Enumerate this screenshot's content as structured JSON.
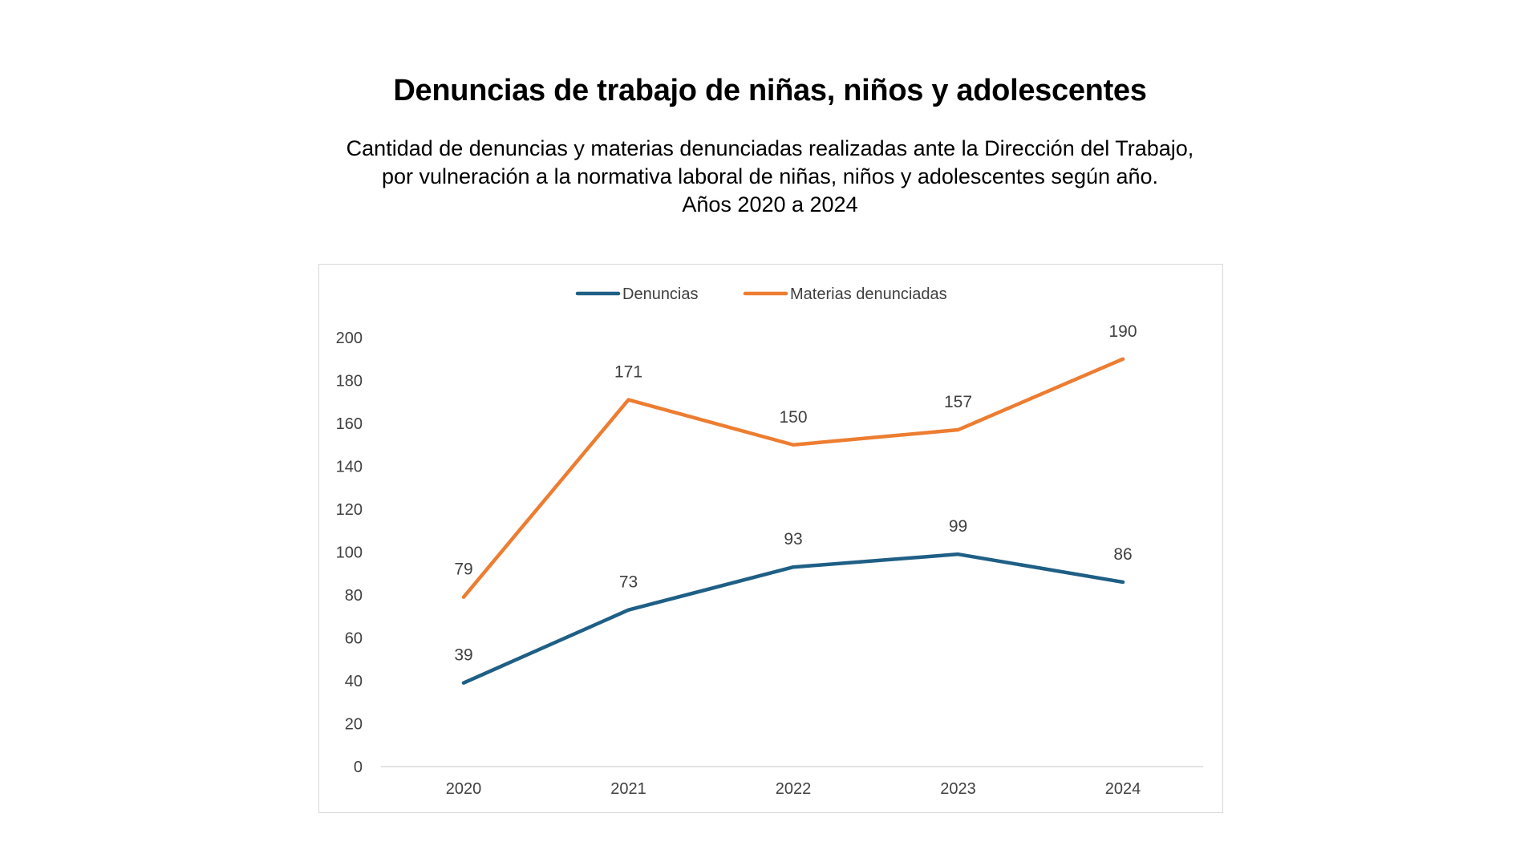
{
  "chart_data": {
    "type": "line",
    "title": "Denuncias de trabajo de niñas, niños y adolescentes",
    "subtitle_lines": [
      "Cantidad de denuncias y materias denunciadas realizadas ante la Dirección del Trabajo,",
      "por vulneración a la normativa laboral de niñas, niños y adolescentes según año.",
      "Años 2020 a 2024"
    ],
    "categories": [
      "2020",
      "2021",
      "2022",
      "2023",
      "2024"
    ],
    "series": [
      {
        "name": "Denuncias",
        "values": [
          39,
          73,
          93,
          99,
          86
        ],
        "color": "#1f5f86"
      },
      {
        "name": "Materias denunciadas",
        "values": [
          79,
          171,
          150,
          157,
          190
        ],
        "color": "#ed7d31"
      }
    ],
    "yticks": [
      0,
      20,
      40,
      60,
      80,
      100,
      120,
      140,
      160,
      180,
      200
    ],
    "ylim": [
      0,
      200
    ],
    "xlabel": "",
    "ylabel": "",
    "grid": false,
    "legend": "top-center"
  }
}
